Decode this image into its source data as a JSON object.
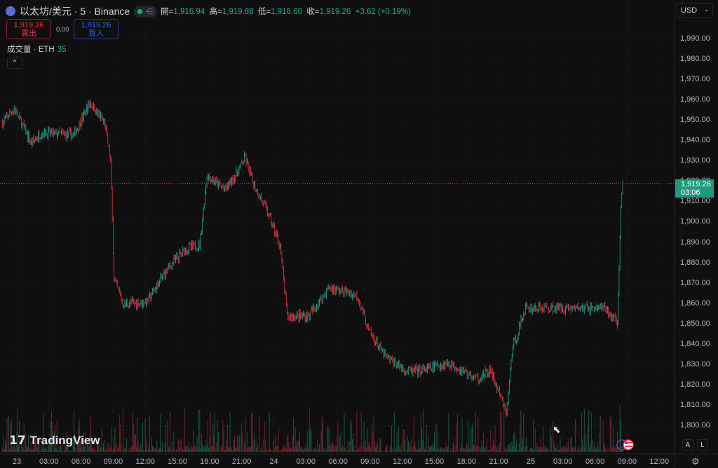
{
  "header": {
    "symbol_title": "以太坊/美元 · 5 · Binance",
    "symbol_icon": "ethereum-icon",
    "ohlc": {
      "open_label": "開=",
      "open": "1,916.94",
      "high_label": "高=",
      "high": "1,919.88",
      "low_label": "低=",
      "low": "1,916.60",
      "close_label": "收=",
      "close": "1,919.26",
      "change": "+3.62 (+0.19%)"
    },
    "sell": {
      "price": "1,919.26",
      "label": "賣出"
    },
    "spread": "0.00",
    "buy": {
      "price": "1,919.26",
      "label": "買入"
    },
    "volume": {
      "label": "成交量 · ETH",
      "value": "35"
    },
    "collapse_icon": "chevron-up-icon"
  },
  "currency": "USD",
  "watermark": "TradingView",
  "scale_buttons": [
    "A",
    "L"
  ],
  "last_price": {
    "price": "1,919.26",
    "countdown": "03:06"
  },
  "colors": {
    "up": "#22ab94",
    "down": "#f23645",
    "background": "#0f0f0f",
    "last_price_bg": "#1f9a7c"
  },
  "chart_data": {
    "type": "candlestick",
    "interval": "5",
    "ylim": [
      1795,
      2000
    ],
    "y_ticks": [
      "1,990.00",
      "1,980.00",
      "1,970.00",
      "1,960.00",
      "1,950.00",
      "1,940.00",
      "1,930.00",
      "1,920.00",
      "1,910.00",
      "1,900.00",
      "1,890.00",
      "1,880.00",
      "1,870.00",
      "1,860.00",
      "1,850.00",
      "1,840.00",
      "1,830.00",
      "1,820.00",
      "1,810.00",
      "1,800.00"
    ],
    "x_ticks": [
      "23",
      "03:00",
      "06:00",
      "09:00",
      "12:00",
      "15:00",
      "18:00",
      "21:00",
      "24",
      "03:00",
      "06:00",
      "09:00",
      "12:00",
      "15:00",
      "18:00",
      "21:00",
      "25",
      "03:00",
      "06:00",
      "09:00",
      "12:00"
    ],
    "approx_close_path": [
      [
        "22 22:40",
        1949
      ],
      [
        "22 23:45",
        1956
      ],
      [
        "23 01:20",
        1939
      ],
      [
        "23 02:20",
        1944
      ],
      [
        "23 05:20",
        1943
      ],
      [
        "23 06:50",
        1959
      ],
      [
        "23 08:15",
        1948
      ],
      [
        "23 08:45",
        1930
      ],
      [
        "23 09:05",
        1872
      ],
      [
        "23 09:55",
        1860
      ],
      [
        "23 12:10",
        1861
      ],
      [
        "23 14:10",
        1878
      ],
      [
        "23 15:45",
        1887
      ],
      [
        "23 17:05",
        1889
      ],
      [
        "23 17:45",
        1923
      ],
      [
        "23 19:25",
        1916
      ],
      [
        "23 20:40",
        1925
      ],
      [
        "23 21:20",
        1932
      ],
      [
        "23 22:00",
        1920
      ],
      [
        "23 23:20",
        1906
      ],
      [
        "24 00:35",
        1889
      ],
      [
        "24 01:15",
        1854
      ],
      [
        "24 03:15",
        1854
      ],
      [
        "24 05:10",
        1868
      ],
      [
        "24 07:50",
        1864
      ],
      [
        "24 08:50",
        1847
      ],
      [
        "24 10:25",
        1834
      ],
      [
        "24 12:25",
        1827
      ],
      [
        "24 13:40",
        1827
      ],
      [
        "24 16:20",
        1831
      ],
      [
        "24 19:00",
        1823
      ],
      [
        "24 20:15",
        1827
      ],
      [
        "24 21:45",
        1806
      ],
      [
        "24 22:15",
        1837
      ],
      [
        "24 23:30",
        1858
      ],
      [
        "25 01:30",
        1858
      ],
      [
        "25 04:10",
        1858
      ],
      [
        "25 06:45",
        1858
      ],
      [
        "25 08:05",
        1851
      ],
      [
        "25 08:25",
        1906
      ],
      [
        "25 08:35",
        1919.26
      ]
    ]
  }
}
